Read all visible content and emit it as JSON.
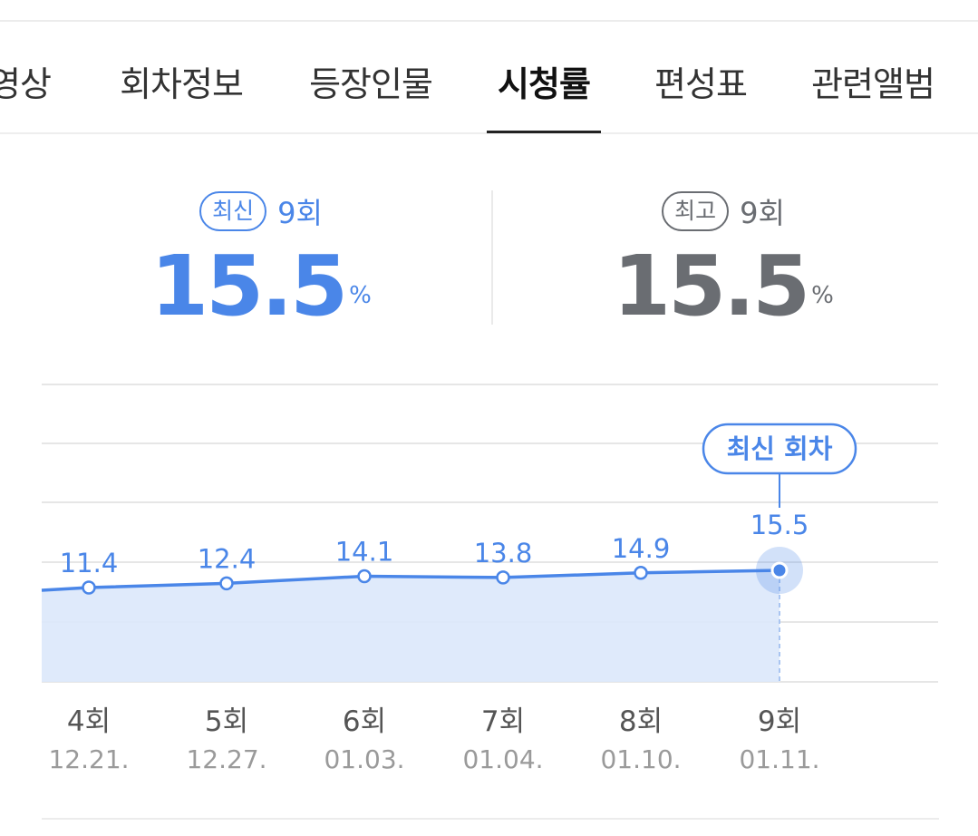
{
  "tabs": [
    {
      "label": "영상",
      "active": false
    },
    {
      "label": "회차정보",
      "active": false
    },
    {
      "label": "등장인물",
      "active": false
    },
    {
      "label": "시청률",
      "active": true
    },
    {
      "label": "편성표",
      "active": false
    },
    {
      "label": "관련앨범",
      "active": false
    }
  ],
  "latest": {
    "badge": "최신",
    "episode": "9회",
    "value": "15.5",
    "unit": "%"
  },
  "best": {
    "badge": "최고",
    "episode": "9회",
    "value": "15.5",
    "unit": "%"
  },
  "colors": {
    "accent": "#4a86e8",
    "best_gray": "#6a6d72",
    "area_fill": "#dce8fb"
  },
  "chart_data": {
    "type": "line",
    "callout": "최신 회차",
    "categories": [
      "4회",
      "5회",
      "6회",
      "7회",
      "8회",
      "9회"
    ],
    "dates": [
      "12.21.",
      "12.27.",
      "01.03.",
      "01.04.",
      "01.10.",
      "01.11."
    ],
    "values": [
      11.4,
      12.4,
      14.1,
      13.8,
      14.9,
      15.5
    ],
    "highlight_index": 5,
    "grid": true
  }
}
